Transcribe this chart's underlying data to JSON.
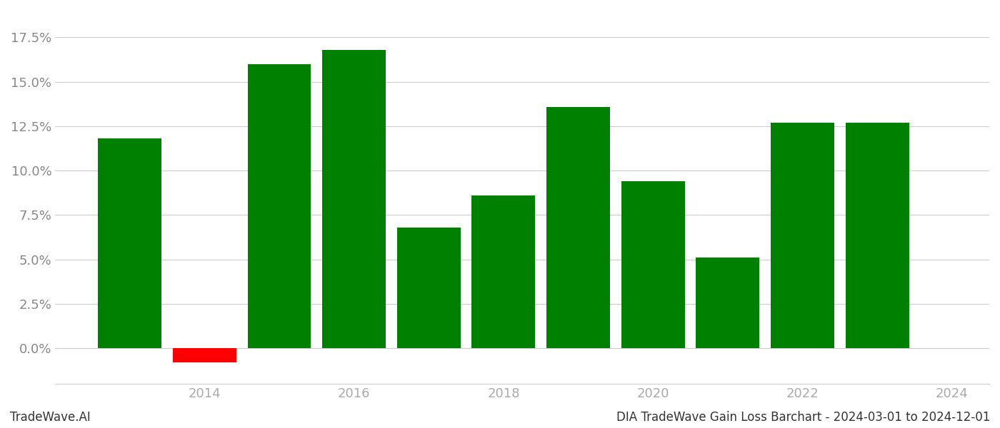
{
  "years": [
    2013,
    2014,
    2015,
    2016,
    2017,
    2018,
    2019,
    2020,
    2021,
    2022,
    2023
  ],
  "values": [
    0.118,
    -0.008,
    0.16,
    0.168,
    0.068,
    0.086,
    0.136,
    0.094,
    0.051,
    0.127,
    0.127
  ],
  "colors": [
    "#008000",
    "#ff0000",
    "#008000",
    "#008000",
    "#008000",
    "#008000",
    "#008000",
    "#008000",
    "#008000",
    "#008000",
    "#008000"
  ],
  "xtick_positions": [
    2014,
    2016,
    2018,
    2020,
    2022,
    2024
  ],
  "xtick_labels": [
    "2014",
    "2016",
    "2018",
    "2020",
    "2022",
    "2024"
  ],
  "ylabel_ticks": [
    0.0,
    0.025,
    0.05,
    0.075,
    0.1,
    0.125,
    0.15,
    0.175
  ],
  "xlim": [
    2012.0,
    2024.5
  ],
  "ylim": [
    -0.02,
    0.19
  ],
  "tick_fontsize": 13,
  "footer_left": "TradeWave.AI",
  "footer_right": "DIA TradeWave Gain Loss Barchart - 2024-03-01 to 2024-12-01",
  "footer_fontsize": 12,
  "bg_color": "#ffffff",
  "grid_color": "#cccccc",
  "bar_width": 0.85
}
